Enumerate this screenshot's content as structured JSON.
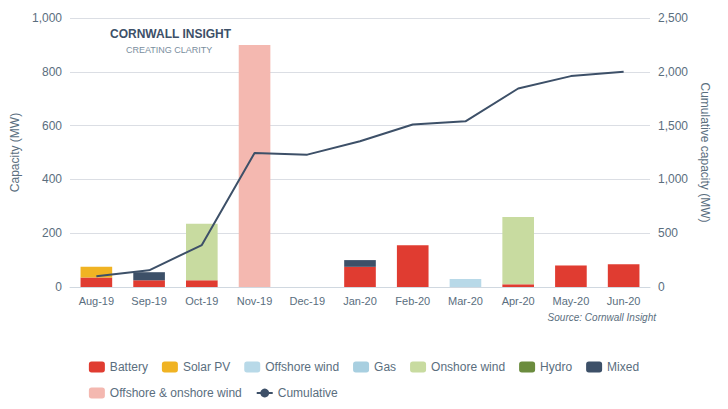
{
  "chart_data": {
    "type": "bar",
    "stacked": true,
    "categories": [
      "Aug-19",
      "Sep-19",
      "Oct-19",
      "Nov-19",
      "Dec-19",
      "Jan-20",
      "Feb-20",
      "Mar-20",
      "Apr-20",
      "May-20",
      "Jun-20"
    ],
    "series": [
      {
        "name": "Battery",
        "color": "#e03c31",
        "values": [
          35,
          25,
          25,
          0,
          0,
          75,
          155,
          0,
          10,
          80,
          85
        ]
      },
      {
        "name": "Solar PV",
        "color": "#f0b323",
        "values": [
          40,
          0,
          0,
          0,
          0,
          0,
          0,
          0,
          0,
          0,
          0
        ]
      },
      {
        "name": "Offshore wind",
        "color": "#b8d9e8",
        "values": [
          0,
          0,
          0,
          0,
          0,
          0,
          0,
          30,
          0,
          0,
          0
        ]
      },
      {
        "name": "Gas",
        "color": "#a8cfe0",
        "values": [
          0,
          0,
          0,
          0,
          0,
          0,
          0,
          0,
          0,
          0,
          0
        ]
      },
      {
        "name": "Onshore wind",
        "color": "#c8dba0",
        "values": [
          0,
          0,
          210,
          0,
          0,
          0,
          0,
          0,
          250,
          0,
          0
        ]
      },
      {
        "name": "Hydro",
        "color": "#6b8c3e",
        "values": [
          0,
          0,
          0,
          0,
          0,
          0,
          0,
          0,
          0,
          0,
          0
        ]
      },
      {
        "name": "Mixed",
        "color": "#3d5068",
        "values": [
          0,
          30,
          0,
          0,
          0,
          25,
          0,
          0,
          0,
          0,
          0
        ]
      },
      {
        "name": "Offshore & onshore wind",
        "color": "#f4b8b0",
        "values": [
          0,
          0,
          0,
          900,
          0,
          0,
          0,
          0,
          0,
          0,
          0
        ]
      },
      {
        "name": "Cumulative",
        "type": "line",
        "axis": "y2",
        "color": "#3d5068",
        "values": [
          100,
          155,
          390,
          1245,
          1230,
          1355,
          1510,
          1540,
          1845,
          1960,
          2000
        ]
      }
    ],
    "ylabel": "Capacity (MW)",
    "y2label": "Cumulative capacity (MW)",
    "ylim": [
      0,
      1000
    ],
    "yticks": [
      0,
      200,
      400,
      600,
      800,
      {
        "value": 1000,
        "label": "1,000"
      }
    ],
    "y2lim": [
      0,
      2500
    ],
    "y2ticks": [
      0,
      500,
      {
        "value": 1000,
        "label": "1,000"
      },
      {
        "value": 1500,
        "label": "1,500"
      },
      {
        "value": 2000,
        "label": "2,000"
      },
      {
        "value": 2500,
        "label": "2,500"
      }
    ],
    "grid": true,
    "legend": "bottom",
    "annotations": [
      "CORNWALL INSIGHT",
      "CREATING CLARITY",
      "Source: Cornwall Insight"
    ]
  }
}
